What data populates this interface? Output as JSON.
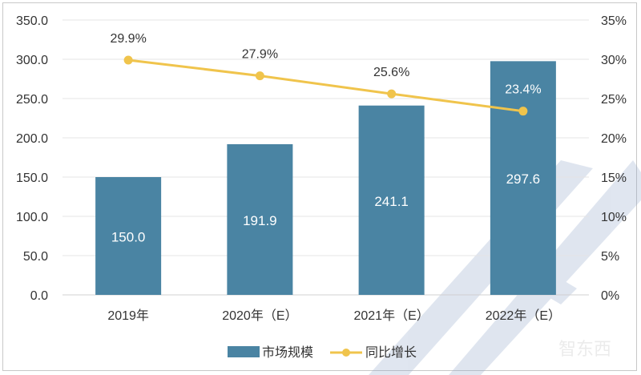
{
  "chart_data": {
    "type": "bar+line",
    "categories": [
      "2019年",
      "2020年（E）",
      "2021年（E）",
      "2022年（E）"
    ],
    "series": [
      {
        "name": "市场规模",
        "type": "bar",
        "axis": "left",
        "values": [
          150.0,
          191.9,
          241.1,
          297.6
        ],
        "color": "#4a84a3",
        "labels": [
          "150.0",
          "191.9",
          "241.1",
          "297.6"
        ]
      },
      {
        "name": "同比增长",
        "type": "line",
        "axis": "right",
        "values": [
          29.9,
          27.9,
          25.6,
          23.4
        ],
        "color": "#f0c44c",
        "labels": [
          "29.9%",
          "27.9%",
          "25.6%",
          "23.4%"
        ]
      }
    ],
    "left_axis": {
      "range": [
        0,
        350
      ],
      "ticks": [
        "0.0",
        "50.0",
        "100.0",
        "150.0",
        "200.0",
        "250.0",
        "300.0",
        "350.0"
      ]
    },
    "right_axis": {
      "range": [
        0,
        35
      ],
      "ticks": [
        "0%",
        "5%",
        "10%",
        "15%",
        "20%",
        "25%",
        "30%",
        "35%"
      ]
    },
    "grid": true,
    "legend": "bottom",
    "watermark": "智东西"
  }
}
